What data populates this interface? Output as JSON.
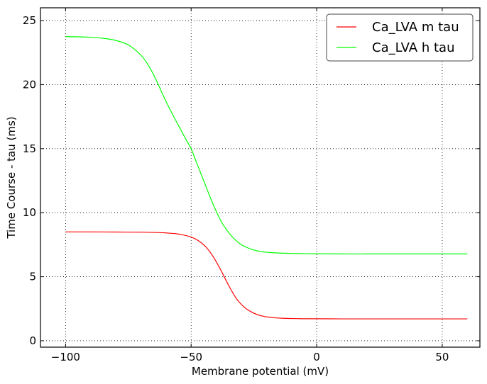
{
  "chart_data": {
    "type": "line",
    "xlabel": "Membrane potential (mV)",
    "ylabel": "Time Course - tau (ms)",
    "xlim": [
      -110,
      65
    ],
    "ylim": [
      -0.5,
      26
    ],
    "xticks": [
      -100,
      -50,
      0,
      50
    ],
    "yticks": [
      0,
      5,
      10,
      15,
      20,
      25
    ],
    "xtick_labels": [
      "−100",
      "−50",
      "0",
      "50"
    ],
    "ytick_labels": [
      "0",
      "5",
      "10",
      "15",
      "20",
      "25"
    ],
    "grid": true,
    "legend_position": "top-right",
    "series": [
      {
        "name": "Ca_LVA m tau",
        "color": "#ff0000",
        "x": [
          -100,
          -90,
          -80,
          -70,
          -65,
          -60,
          -55,
          -50,
          -47,
          -44,
          -41,
          -38,
          -35,
          -32,
          -29,
          -26,
          -23,
          -20,
          -17,
          -14,
          -11,
          -8,
          -5,
          0,
          10,
          20,
          30,
          40,
          50,
          60
        ],
        "y": [
          8.5,
          8.5,
          8.49,
          8.48,
          8.46,
          8.42,
          8.33,
          8.1,
          7.8,
          7.3,
          6.5,
          5.45,
          4.3,
          3.3,
          2.65,
          2.25,
          2.0,
          1.87,
          1.8,
          1.76,
          1.74,
          1.73,
          1.72,
          1.72,
          1.71,
          1.71,
          1.71,
          1.71,
          1.71,
          1.71
        ]
      },
      {
        "name": "Ca_LVA h tau",
        "color": "#00ff00",
        "x": [
          -100,
          -95,
          -90,
          -85,
          -80,
          -75,
          -70,
          -67,
          -64,
          -61,
          -58,
          -55,
          -52,
          -50,
          -48,
          -46,
          -44,
          -42,
          -40,
          -38,
          -36,
          -34,
          -32,
          -30,
          -28,
          -26,
          -24,
          -22,
          -20,
          -15,
          -10,
          -5,
          0,
          10,
          20,
          30,
          40,
          50,
          60
        ],
        "y": [
          23.75,
          23.73,
          23.7,
          23.62,
          23.45,
          23.1,
          22.3,
          21.5,
          20.4,
          19.1,
          17.9,
          16.8,
          15.7,
          15.0,
          14.0,
          13.0,
          12.0,
          11.0,
          10.1,
          9.3,
          8.7,
          8.2,
          7.8,
          7.5,
          7.3,
          7.15,
          7.03,
          6.96,
          6.91,
          6.85,
          6.82,
          6.8,
          6.79,
          6.78,
          6.78,
          6.78,
          6.78,
          6.78,
          6.78
        ]
      }
    ]
  }
}
